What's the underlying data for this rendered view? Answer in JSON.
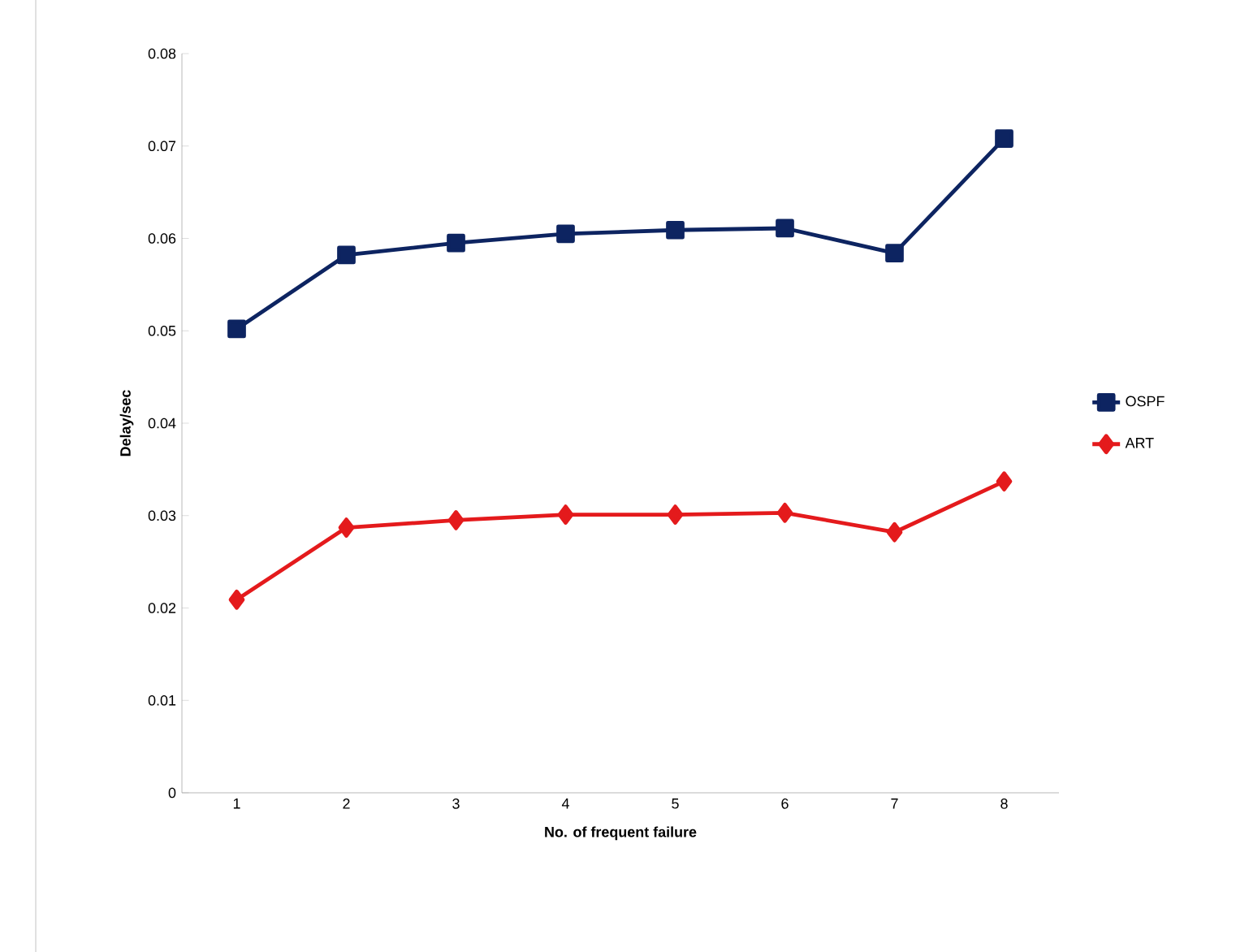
{
  "chart_data": {
    "type": "line",
    "xlabel": "No. of frequent failure",
    "ylabel": "Delay/sec",
    "categories": [
      "1",
      "2",
      "3",
      "4",
      "5",
      "6",
      "7",
      "8"
    ],
    "series": [
      {
        "name": "OSPF",
        "color": "#0d2461",
        "marker": "square",
        "values": [
          0.0502,
          0.0582,
          0.0595,
          0.0605,
          0.0609,
          0.0611,
          0.0584,
          0.0708
        ]
      },
      {
        "name": "ART",
        "color": "#e41a1c",
        "marker": "diamond",
        "values": [
          0.0209,
          0.0287,
          0.0295,
          0.0301,
          0.0301,
          0.0303,
          0.0282,
          0.0337
        ]
      }
    ],
    "ylim": [
      0,
      0.08
    ],
    "yticks": [
      0,
      0.01,
      0.02,
      0.03,
      0.04,
      0.05,
      0.06,
      0.07,
      0.08
    ],
    "grid": false,
    "legend": "right",
    "line_style": "solid"
  }
}
